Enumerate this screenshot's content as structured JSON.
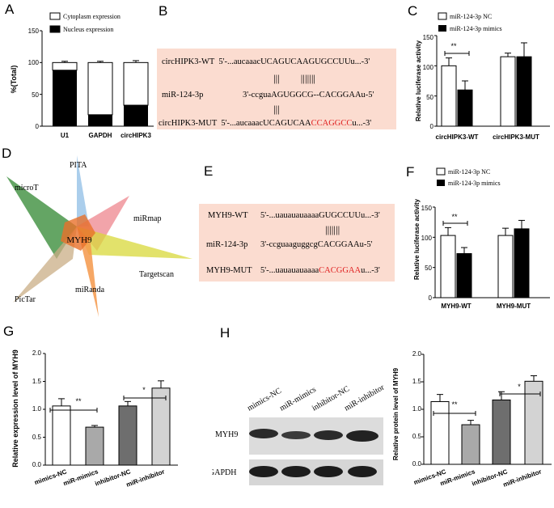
{
  "panels": {
    "A": "A",
    "B": "B",
    "C": "C",
    "D": "D",
    "E": "E",
    "F": "F",
    "G": "G",
    "H": "H"
  },
  "panelA": {
    "ylabel": "%(Total)",
    "yticks": [
      "0",
      "50",
      "100",
      "150"
    ],
    "legend": [
      "Cytoplasm expression",
      "Nucleus expression"
    ],
    "categories": [
      "U1",
      "GAPDH",
      "circHIPK3"
    ]
  },
  "panelB": {
    "wt_name": "circHIPK3-WT",
    "wt_seq_a": "5'-...aucaaacUCAGUCAAGUGCCUUu...-3'",
    "mir_name": "miR-124-3p",
    "mir_seq": "3'-ccguaAGUGGCG--CACGGAAu-5'",
    "mut_name": "circHIPK3-MUT",
    "mut_seq_a": "5'-...aucaaacUCAGUCAA",
    "mut_seq_red": "CCAGGCC",
    "mut_seq_b": "u...-3'",
    "bars_top": "|||        |||||||",
    "bars_bottom": "|||"
  },
  "panelC": {
    "ylabel": "Relative luciferase activity",
    "yticks": [
      "0",
      "50",
      "100",
      "150"
    ],
    "legend": [
      "miR-124-3p NC",
      "miR-124-3p mimics"
    ],
    "groups": [
      "circHIPK3-WT",
      "circHIPK3-MUT"
    ],
    "sig": "**"
  },
  "panelD": {
    "center": "MYH9",
    "tools": [
      "PITA",
      "miRmap",
      "microT",
      "Targetscan",
      "PicTar",
      "miRanda"
    ]
  },
  "panelE": {
    "wt_name": "MYH9-WT",
    "wt_seq": "5'-...uauauauaaaaGUGCCUUu...-3'",
    "mir_name": "miR-124-3p",
    "mir_seq": "3'-ccguaaguggcgCACGGAAu-5'",
    "mut_name": "MYH9-MUT",
    "mut_seq_a": "5'-...uauauauaaaa",
    "mut_seq_red": "CACGGAA",
    "mut_seq_b": "u...-3'",
    "bars": "|||||||"
  },
  "panelF": {
    "ylabel": "Relative luciferase activity",
    "yticks": [
      "0",
      "50",
      "100",
      "150"
    ],
    "legend": [
      "miR-124-3p NC",
      "miR-124-3p mimics"
    ],
    "groups": [
      "MYH9-WT",
      "MYH9-MUT"
    ],
    "sig": "**"
  },
  "panelG": {
    "ylabel": "Relative expression level of  MYH9",
    "yticks": [
      "0.0",
      "0.5",
      "1.0",
      "1.5",
      "2.0"
    ],
    "categories": [
      "mimics-NC",
      "miR-mimics",
      "inhibitor-NC",
      "miR-inhibitor"
    ],
    "sig": [
      "**",
      "*"
    ]
  },
  "panelH": {
    "lanes": [
      "mimics-NC",
      "miR-mimics",
      "inhibitor-NC",
      "miR-inhibitor"
    ],
    "rows": [
      "MYH9",
      "GAPDH"
    ],
    "ylabel": "Relative protein level of  MYH9",
    "yticks": [
      "0.0",
      "0.5",
      "1.0",
      "1.5",
      "2.0"
    ],
    "categories": [
      "mimics-NC",
      "miR-mimics",
      "inhibitor-NC",
      "miR-inhibitor"
    ],
    "sig": [
      "**",
      "*"
    ]
  },
  "chart_data": [
    {
      "id": "A",
      "type": "bar",
      "stacked": true,
      "categories": [
        "U1",
        "GAPDH",
        "circHIPK3"
      ],
      "series": [
        {
          "name": "Nucleus expression",
          "values": [
            88,
            18,
            33
          ],
          "errors": [
            3,
            3,
            4
          ],
          "color": "#000000"
        },
        {
          "name": "Cytoplasm expression",
          "values": [
            12,
            82,
            67
          ],
          "errors": [
            2,
            2,
            3
          ],
          "color": "#ffffff"
        }
      ],
      "ylabel": "%(Total)",
      "ylim": [
        0,
        150
      ]
    },
    {
      "id": "C",
      "type": "bar",
      "categories": [
        "circHIPK3-WT",
        "circHIPK3-MUT"
      ],
      "series": [
        {
          "name": "miR-124-3p NC",
          "values": [
            100,
            115
          ],
          "errors": [
            13,
            6
          ],
          "color": "#ffffff"
        },
        {
          "name": "miR-124-3p mimics",
          "values": [
            60,
            115
          ],
          "errors": [
            15,
            23
          ],
          "color": "#000000"
        }
      ],
      "ylabel": "Relative luciferase activity",
      "ylim": [
        0,
        150
      ]
    },
    {
      "id": "F",
      "type": "bar",
      "categories": [
        "MYH9-WT",
        "MYH9-MUT"
      ],
      "series": [
        {
          "name": "miR-124-3p NC",
          "values": [
            103,
            103
          ],
          "errors": [
            13,
            12
          ],
          "color": "#ffffff"
        },
        {
          "name": "miR-124-3p mimics",
          "values": [
            73,
            114
          ],
          "errors": [
            10,
            14
          ],
          "color": "#000000"
        }
      ],
      "ylabel": "Relative luciferase activity",
      "ylim": [
        0,
        150
      ]
    },
    {
      "id": "G",
      "type": "bar",
      "categories": [
        "mimics-NC",
        "miR-mimics",
        "inhibitor-NC",
        "miR-inhibitor"
      ],
      "values": [
        1.06,
        0.68,
        1.06,
        1.38
      ],
      "errors": [
        0.13,
        0.03,
        0.08,
        0.13
      ],
      "colors": [
        "#ffffff",
        "#a9a9a9",
        "#6e6e6e",
        "#d3d3d3"
      ],
      "ylabel": "Relative expression level of  MYH9",
      "ylim": [
        0,
        2.0
      ]
    },
    {
      "id": "H",
      "type": "bar",
      "categories": [
        "mimics-NC",
        "miR-mimics",
        "inhibitor-NC",
        "miR-inhibitor"
      ],
      "values": [
        1.14,
        0.72,
        1.17,
        1.51
      ],
      "errors": [
        0.13,
        0.08,
        0.15,
        0.1
      ],
      "colors": [
        "#ffffff",
        "#a9a9a9",
        "#6e6e6e",
        "#d3d3d3"
      ],
      "ylabel": "Relative protein level of  MYH9",
      "ylim": [
        0,
        2.0
      ]
    }
  ]
}
